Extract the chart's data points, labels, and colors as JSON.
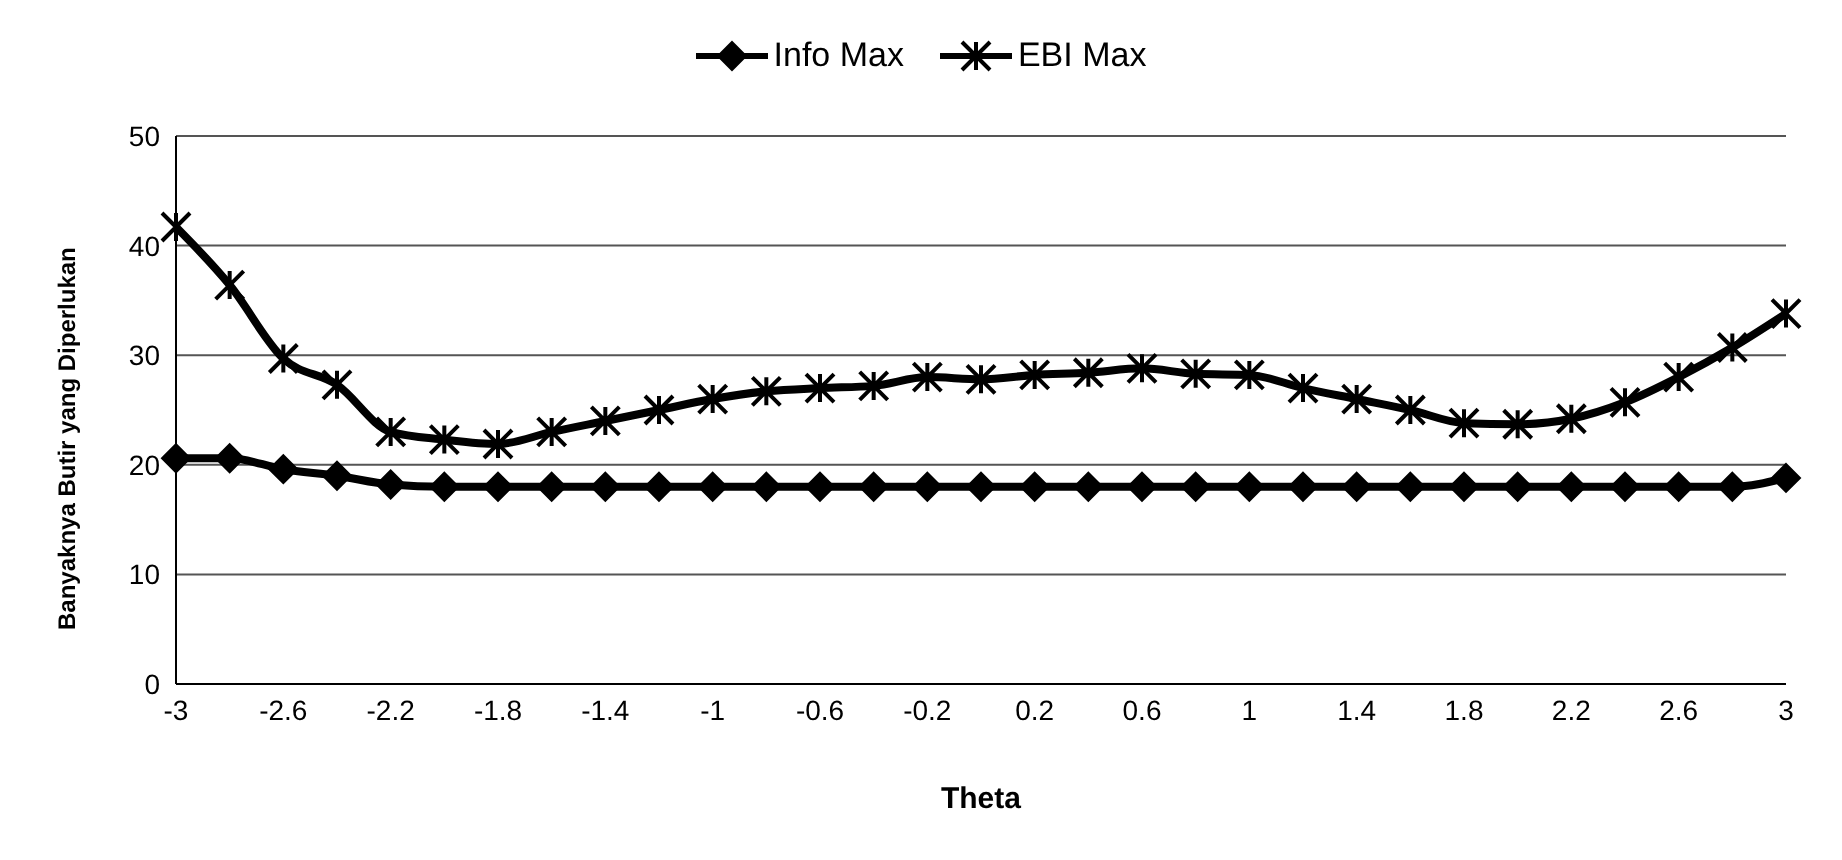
{
  "chart_data": {
    "type": "line",
    "xlabel": "Theta",
    "ylabel": "Banyaknya Butir yang Diperlukan",
    "categories": [
      "-3",
      null,
      "-2.6",
      null,
      "-2.2",
      null,
      "-1.8",
      null,
      "-1.4",
      null,
      "-1",
      null,
      "-0.6",
      null,
      "-0.2",
      null,
      "0.2",
      null,
      "0.6",
      null,
      "1",
      null,
      "1.4",
      null,
      "1.8",
      null,
      "2.2",
      null,
      "2.6",
      null,
      "3"
    ],
    "series": [
      {
        "name": "Info Max",
        "color": "#000000",
        "marker": "diamond",
        "values": [
          20.6,
          20.6,
          19.6,
          19,
          18.2,
          18,
          18,
          18,
          18,
          18,
          18,
          18,
          18,
          18,
          18,
          18,
          18,
          18,
          18,
          18,
          18,
          18,
          18,
          18,
          18,
          18,
          18,
          18,
          18,
          18,
          18.8
        ]
      },
      {
        "name": "EBI Max",
        "color": "#000000",
        "marker": "cross",
        "values": [
          41.7,
          36.4,
          29.7,
          27.3,
          23,
          22.3,
          21.9,
          23,
          24,
          25,
          26,
          26.7,
          27,
          27.2,
          28,
          27.8,
          28.2,
          28.4,
          28.8,
          28.3,
          28.2,
          27,
          26,
          25,
          23.8,
          23.7,
          24.2,
          25.7,
          28,
          30.7,
          33.8
        ]
      }
    ],
    "ylim": [
      0,
      50
    ],
    "yticks": [
      0,
      10,
      20,
      30,
      40,
      50
    ],
    "grid": "y",
    "legend": "top",
    "line_style": "solid"
  }
}
